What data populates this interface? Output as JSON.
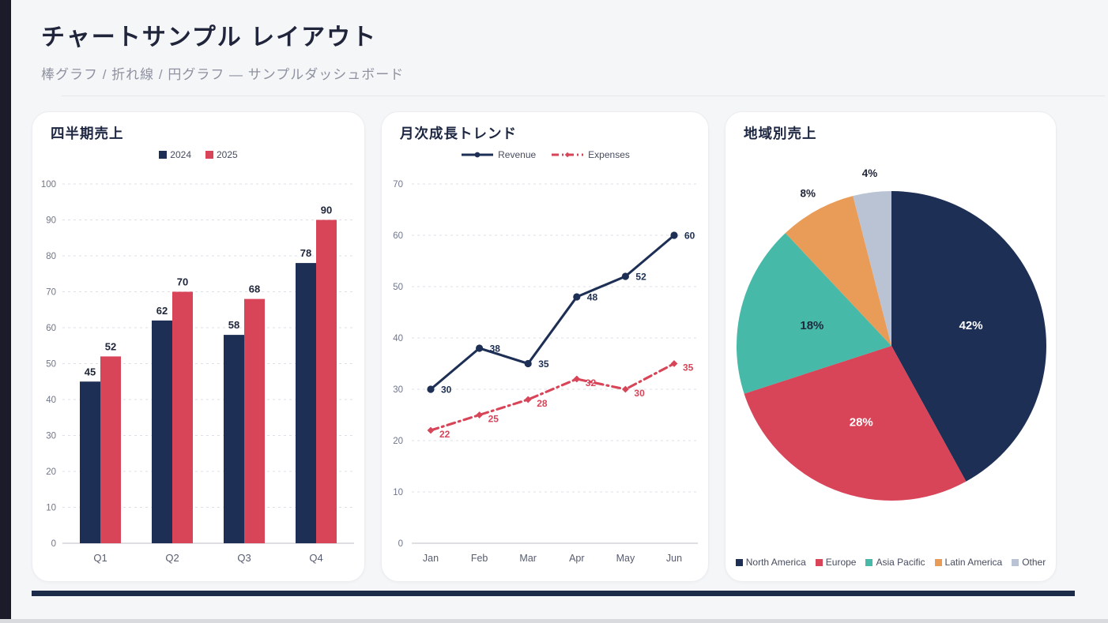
{
  "header": {
    "title": "チャートサンプル レイアウト",
    "subtitle": "棒グラフ / 折れ線 / 円グラフ — サンプルダッシュボード"
  },
  "colors": {
    "navy": "#1d2f54",
    "red": "#d84458",
    "teal": "#46b9a9",
    "orange": "#e99b58",
    "gray_blue": "#bac3d3",
    "page_bg": "#f5f6f8",
    "accent_bar": "#1b1b29",
    "footer_bar": "#1d2b4a",
    "grid": "#dcdfe5",
    "axis": "#c9ccd4",
    "tick_text": "#70768a",
    "category_text": "#575c70",
    "value_label": "#1f2538",
    "legend_text": "#474c5f"
  },
  "chart_data": [
    {
      "type": "bar",
      "title": "四半期売上",
      "categories": [
        "Q1",
        "Q2",
        "Q3",
        "Q4"
      ],
      "series": [
        {
          "name": "2024",
          "color": "#1d2f54",
          "values": [
            45,
            62,
            58,
            78
          ]
        },
        {
          "name": "2025",
          "color": "#d84458",
          "values": [
            52,
            70,
            68,
            90
          ]
        }
      ],
      "ylim": [
        0,
        100
      ],
      "yticks": [
        0,
        10,
        20,
        30,
        40,
        50,
        60,
        70,
        80,
        90,
        100
      ],
      "grid": true,
      "legend_position": "top"
    },
    {
      "type": "line",
      "title": "月次成長トレンド",
      "x": [
        "Jan",
        "Feb",
        "Mar",
        "Apr",
        "May",
        "Jun"
      ],
      "series": [
        {
          "name": "Revenue",
          "color": "#1d2f54",
          "style": "solid",
          "marker": "circle",
          "values": [
            30,
            38,
            35,
            48,
            52,
            60
          ]
        },
        {
          "name": "Expenses",
          "color": "#d84458",
          "style": "dash-dot",
          "marker": "diamond",
          "values": [
            22,
            25,
            28,
            32,
            30,
            35
          ]
        }
      ],
      "ylim": [
        0,
        70
      ],
      "yticks": [
        0,
        10,
        20,
        30,
        40,
        50,
        60,
        70
      ],
      "grid": true,
      "legend_position": "top"
    },
    {
      "type": "pie",
      "title": "地域別売上",
      "slices": [
        {
          "name": "North America",
          "value": 42,
          "pct_label": "42%",
          "color": "#1d2f54",
          "label_color": "#ffffff",
          "label_placement": "inside"
        },
        {
          "name": "Europe",
          "value": 28,
          "pct_label": "28%",
          "color": "#d84458",
          "label_color": "#ffffff",
          "label_placement": "inside"
        },
        {
          "name": "Asia Pacific",
          "value": 18,
          "pct_label": "18%",
          "color": "#46b9a9",
          "label_color": "#1e2940",
          "label_placement": "inside"
        },
        {
          "name": "Latin America",
          "value": 8,
          "pct_label": "8%",
          "color": "#e99b58",
          "label_color": "#1e2436",
          "label_placement": "outside"
        },
        {
          "name": "Other",
          "value": 4,
          "pct_label": "4%",
          "color": "#bac3d3",
          "label_color": "#1e2436",
          "label_placement": "outside"
        }
      ],
      "legend_position": "bottom"
    }
  ]
}
